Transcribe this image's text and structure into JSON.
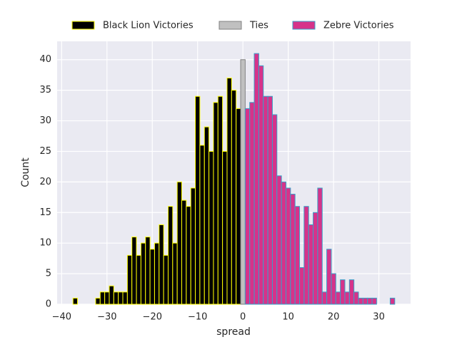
{
  "chart_data": {
    "type": "histogram",
    "x_label": "spread",
    "y_label": "Count",
    "xlim": [
      -41,
      37
    ],
    "xticks": [
      {
        "value": -40,
        "label": "−40"
      },
      {
        "value": -30,
        "label": "−30"
      },
      {
        "value": -20,
        "label": "−20"
      },
      {
        "value": -10,
        "label": "−10"
      },
      0,
      10,
      20,
      30
    ],
    "ylim": [
      0,
      43
    ],
    "yticks": [
      0,
      5,
      10,
      15,
      20,
      25,
      30,
      35,
      40
    ],
    "grid": true,
    "legend": "top",
    "series": [
      {
        "name": "Black Lion Victories",
        "color": "#000000",
        "edgecolor": "#ffff00",
        "bins": [
          -37.5,
          -36.5,
          -35.5,
          -34.5,
          -33.5,
          -32.5,
          -31.5,
          -30.5,
          -29.5,
          -28.5,
          -27.5,
          -26.5,
          -25.5,
          -24.5,
          -23.5,
          -22.5,
          -21.5,
          -20.5,
          -19.5,
          -18.5,
          -17.5,
          -16.5,
          -15.5,
          -14.5,
          -13.5,
          -12.5,
          -11.5,
          -10.5,
          -9.5,
          -8.5,
          -7.5,
          -6.5,
          -5.5,
          -4.5,
          -3.5,
          -2.5,
          -1.5,
          -0.5
        ],
        "values": [
          1,
          0,
          0,
          0,
          0,
          1,
          2,
          2,
          3,
          2,
          2,
          2,
          8,
          11,
          8,
          10,
          11,
          9,
          10,
          13,
          8,
          16,
          10,
          20,
          17,
          16,
          19,
          34,
          26,
          29,
          25,
          33,
          34,
          25,
          37,
          35,
          32
        ]
      },
      {
        "name": "Ties",
        "color": "#c0c0c0",
        "edgecolor": "#808080",
        "bins": [
          -0.5,
          0.5
        ],
        "values": [
          40
        ]
      },
      {
        "name": "Zebre Victories",
        "color": "#d6338a",
        "edgecolor": "#3aa0c8",
        "bins": [
          0.5,
          1.5,
          2.5,
          3.5,
          4.5,
          5.5,
          6.5,
          7.5,
          8.5,
          9.5,
          10.5,
          11.5,
          12.5,
          13.5,
          14.5,
          15.5,
          16.5,
          17.5,
          18.5,
          19.5,
          20.5,
          21.5,
          22.5,
          23.5,
          24.5,
          25.5,
          26.5,
          27.5,
          28.5,
          29.5,
          30.5,
          31.5,
          32.5,
          33.5
        ],
        "values": [
          32,
          33,
          41,
          39,
          34,
          34,
          31,
          21,
          20,
          19,
          18,
          16,
          6,
          16,
          13,
          15,
          19,
          2,
          9,
          5,
          2,
          4,
          2,
          4,
          2,
          1,
          1,
          1,
          1,
          0,
          0,
          0,
          1
        ]
      }
    ]
  }
}
